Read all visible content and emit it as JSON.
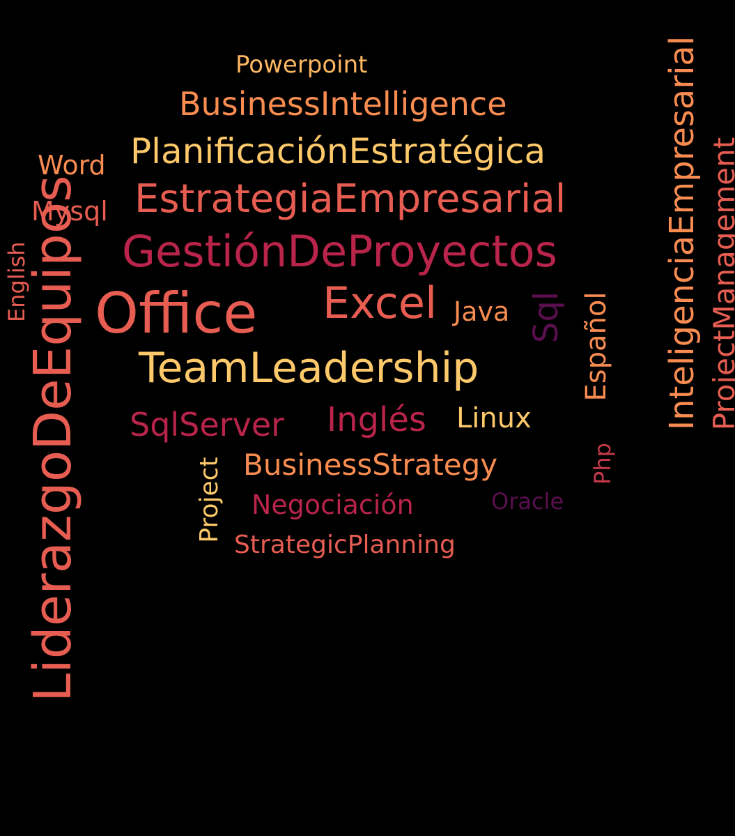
{
  "words": {
    "powerpoint": "Powerpoint",
    "business_intelligence": "BusinessIntelligence",
    "planificacion_estrategica": "PlanificaciónEstratégica",
    "word": "Word",
    "estrategia_empresarial": "EstrategiaEmpresarial",
    "mysql": "Mysql",
    "gestion_de_proyectos": "GestiónDeProyectos",
    "english": "English",
    "liderazgo_de_equipos": "LiderazgoDeEquipos",
    "office": "Office",
    "excel": "Excel",
    "java": "Java",
    "sql": "Sql",
    "espanol": "Español",
    "team_leadership": "TeamLeadership",
    "ingles": "Inglés",
    "linux": "Linux",
    "sql_server": "SqlServer",
    "business_strategy": "BusinessStrategy",
    "php": "Php",
    "project": "Project",
    "oracle": "Oracle",
    "negociacion": "Negociación",
    "strategic_planning": "StrategicPlanning",
    "inteligencia_empresarial": "InteligenciaEmpresarial",
    "project_management": "ProjectManagement"
  },
  "colors": {
    "background": "#000000",
    "peach": "#fbb761",
    "orange": "#f88c51",
    "coral": "#e75d52",
    "crimson": "#b8244a",
    "rose": "#c43a4a",
    "plum": "#5a0f4e",
    "gold": "#fdc96a"
  }
}
